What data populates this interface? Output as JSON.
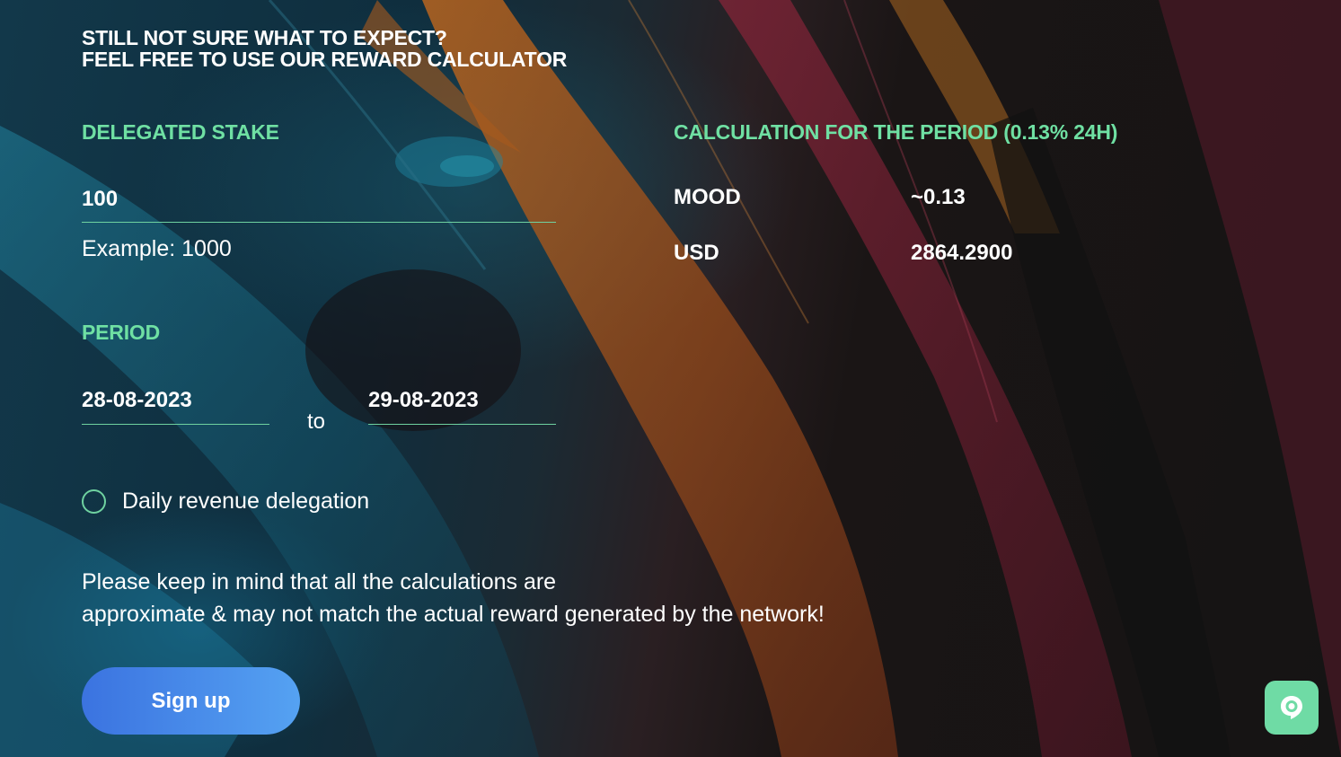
{
  "heading": {
    "line1": "STILL NOT SURE WHAT TO EXPECT?",
    "line2": "FEEL FREE TO USE OUR REWARD CALCULATOR"
  },
  "stake": {
    "label": "DELEGATED STAKE",
    "value": "100",
    "hint": "Example: 1000"
  },
  "period": {
    "label": "PERIOD",
    "from": "28-08-2023",
    "separator": "to",
    "to": "29-08-2023"
  },
  "daily_delegation": {
    "label": "Daily revenue delegation",
    "checked": false
  },
  "note": {
    "line1": "Please keep in mind that all the calculations are",
    "line2": "approximate & may not match the actual reward generated by the network!"
  },
  "signup": {
    "label": "Sign up"
  },
  "calculation": {
    "title": "CALCULATION FOR THE PERIOD (0.13% 24H)",
    "rows": [
      {
        "currency": "MOOD",
        "value": "~0.13"
      },
      {
        "currency": "USD",
        "value": "2864.2900"
      }
    ]
  },
  "chat": {
    "icon": "chat-bubble-icon"
  },
  "colors": {
    "accent_green": "#6fe0a3",
    "button_blue_start": "#3b73e0",
    "button_blue_end": "#55a2f2",
    "chat_green": "#6fdba5"
  }
}
